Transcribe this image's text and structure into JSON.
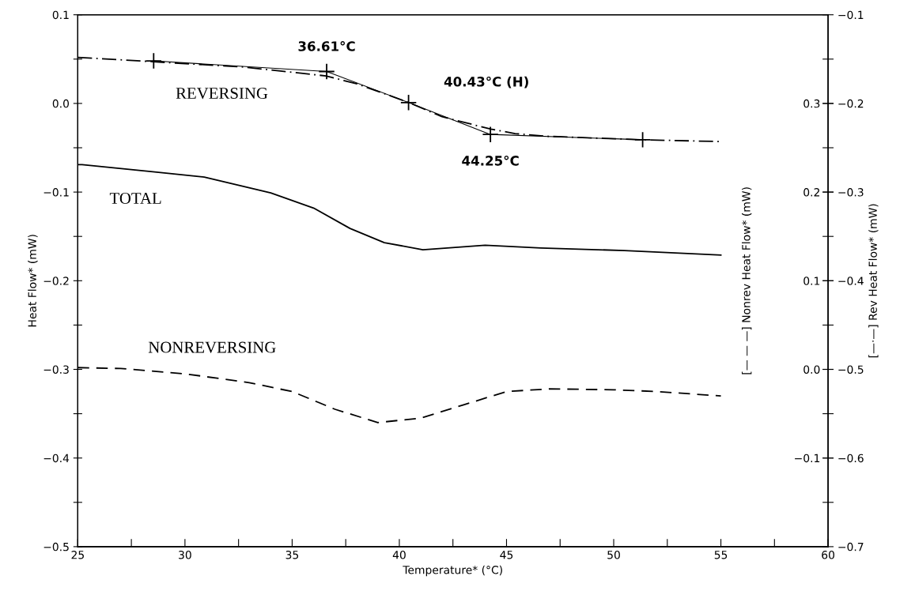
{
  "chart_data": {
    "type": "line",
    "xlabel": "Temperature* (°C)",
    "ylabel": "Heat Flow* (mW)",
    "y2label": "[— — —] Nonrev Heat Flow* (mW)",
    "y3label": "[—·—] Rev Heat Flow* (mW)",
    "xlim": [
      25,
      60
    ],
    "xticks": [
      25,
      {
        "value": 27.5,
        "label": null
      },
      30,
      {
        "value": 32.5,
        "label": null
      },
      35,
      {
        "value": 37.5,
        "label": null
      },
      40,
      {
        "value": 42.5,
        "label": null
      },
      45,
      {
        "value": 47.5,
        "label": null
      },
      50,
      {
        "value": 52.5,
        "label": null
      },
      55,
      {
        "value": 57.5,
        "label": null
      },
      60
    ],
    "ylim": [
      -0.5,
      0.1
    ],
    "yticks": [
      {
        "value": -0.5,
        "label": "−0.5"
      },
      {
        "value": -0.45,
        "label": null
      },
      {
        "value": -0.4,
        "label": "−0.4"
      },
      {
        "value": -0.35,
        "label": null
      },
      {
        "value": -0.3,
        "label": "−0.3"
      },
      {
        "value": -0.25,
        "label": null
      },
      {
        "value": -0.2,
        "label": "−0.2"
      },
      {
        "value": -0.15,
        "label": null
      },
      {
        "value": -0.1,
        "label": "−0.1"
      },
      {
        "value": -0.05,
        "label": null
      },
      {
        "value": 0.0,
        "label": "0.0"
      },
      {
        "value": 0.05,
        "label": null
      },
      0.1
    ],
    "y2lim": [
      -0.2,
      0.4
    ],
    "y2ticks": [
      {
        "value": -0.1,
        "label": "−0.1"
      },
      {
        "value": 0.0,
        "label": "0.0"
      },
      0.1,
      0.2,
      0.3
    ],
    "y3lim": [
      -0.7,
      -0.1
    ],
    "y3ticks": [
      {
        "value": -0.7,
        "label": "−0.7"
      },
      {
        "value": -0.65,
        "label": null
      },
      {
        "value": -0.6,
        "label": "−0.6"
      },
      {
        "value": -0.55,
        "label": null
      },
      {
        "value": -0.5,
        "label": "−0.5"
      },
      {
        "value": -0.45,
        "label": null
      },
      {
        "value": -0.4,
        "label": "−0.4"
      },
      {
        "value": -0.35,
        "label": null
      },
      {
        "value": -0.3,
        "label": "−0.3"
      },
      {
        "value": -0.25,
        "label": null
      },
      {
        "value": -0.2,
        "label": "−0.2"
      },
      {
        "value": -0.15,
        "label": null
      },
      {
        "value": -0.1,
        "label": "−0.1"
      }
    ],
    "grid": false,
    "series": [
      {
        "name": "REVERSING",
        "color": "#000000",
        "axis": "y3",
        "line_style": "dashdot",
        "x": [
          25,
          28.54,
          32.76,
          36.58,
          38.03,
          40.45,
          41.99,
          44.27,
          45.4,
          46.85,
          51.35,
          54.96
        ],
        "values": [
          -0.148,
          -0.153,
          -0.159,
          -0.169,
          -0.178,
          -0.199,
          -0.215,
          -0.229,
          -0.234,
          -0.237,
          -0.241,
          -0.243
        ]
      },
      {
        "color": "#000000",
        "axis": "y3",
        "line_style": "solid",
        "marker": "cross",
        "x": [
          28.54,
          36.61,
          40.43,
          44.25,
          51.35
        ],
        "values": [
          -0.152,
          -0.164,
          -0.199,
          -0.235,
          -0.241
        ]
      },
      {
        "name": "TOTAL",
        "color": "#000000",
        "line_style": "solid",
        "x": [
          25,
          25.2,
          28.5,
          30.9,
          34.0,
          36.0,
          37.7,
          39.3,
          41.1,
          44.0,
          46.6,
          50.5,
          55.0
        ],
        "values": [
          -0.069,
          -0.069,
          -0.077,
          -0.083,
          -0.101,
          -0.118,
          -0.141,
          -0.157,
          -0.165,
          -0.16,
          -0.163,
          -0.166,
          -0.171
        ]
      },
      {
        "name": "NONREVERSING",
        "color": "#000000",
        "axis": "y2",
        "line_style": "dashed",
        "x": [
          25,
          27,
          30,
          33,
          35,
          37,
          39,
          41,
          43,
          45,
          47,
          50,
          52,
          55
        ],
        "values": [
          0.002,
          0.001,
          -0.005,
          -0.015,
          -0.025,
          -0.045,
          -0.06,
          -0.055,
          -0.04,
          -0.025,
          -0.022,
          -0.023,
          -0.025,
          -0.03
        ]
      }
    ],
    "annotations": [
      {
        "text": "36.61°C",
        "x": 36.61,
        "y": 0.036
      },
      {
        "text": "40.43°C (H)",
        "x": 40.43,
        "y": 0.001
      },
      {
        "text": "44.25°C",
        "x": 44.25,
        "y": -0.035
      }
    ]
  }
}
